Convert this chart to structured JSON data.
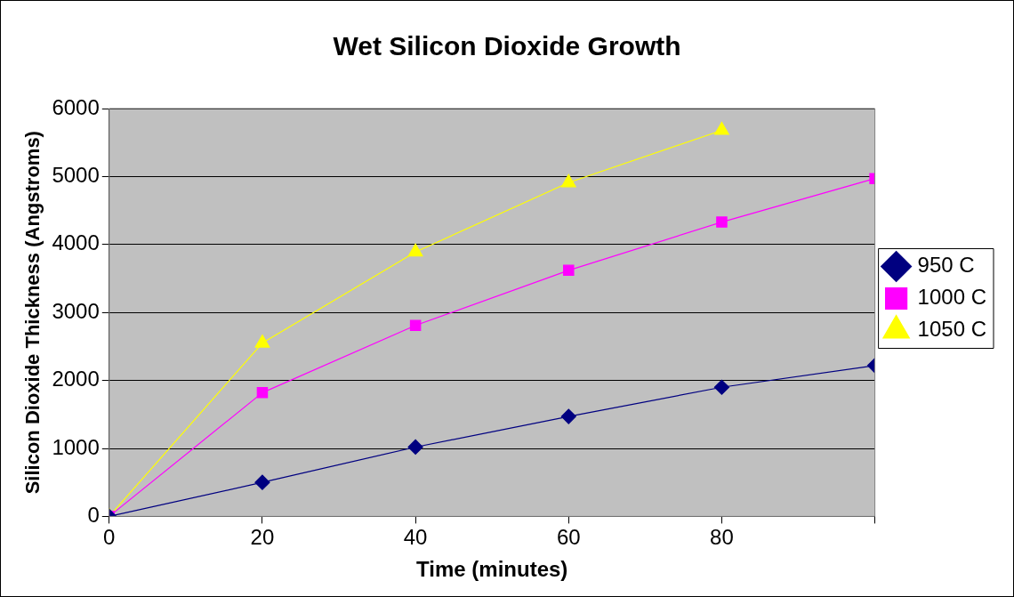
{
  "chart_data": {
    "type": "line",
    "title": "Wet Silicon Dioxide Growth",
    "xlabel": "Time (minutes)",
    "ylabel": "Silicon Dioxide Thickness (Angstroms)",
    "x": [
      0,
      20,
      40,
      60,
      80,
      100
    ],
    "series": [
      {
        "name": "950 C",
        "color": "#000080",
        "marker": "diamond",
        "values": [
          0,
          500,
          1020,
          1470,
          1900,
          2220
        ]
      },
      {
        "name": "1000 C",
        "color": "#ff00ff",
        "marker": "square",
        "values": [
          0,
          1820,
          2810,
          3620,
          4330,
          4970
        ]
      },
      {
        "name": "1050 C",
        "color": "#ffff00",
        "marker": "triangle",
        "x": [
          0,
          20,
          40,
          60,
          80
        ],
        "values": [
          0,
          2550,
          3890,
          4910,
          5680
        ]
      }
    ],
    "xlim": [
      0,
      100
    ],
    "xticks": [
      0,
      20,
      40,
      60,
      80,
      {
        "value": 100,
        "label": null
      }
    ],
    "ylim": [
      0,
      6000
    ],
    "yticks": [
      0,
      1000,
      2000,
      3000,
      4000,
      5000,
      6000
    ],
    "grid": "y",
    "legend": "right",
    "line_style": "solid"
  }
}
